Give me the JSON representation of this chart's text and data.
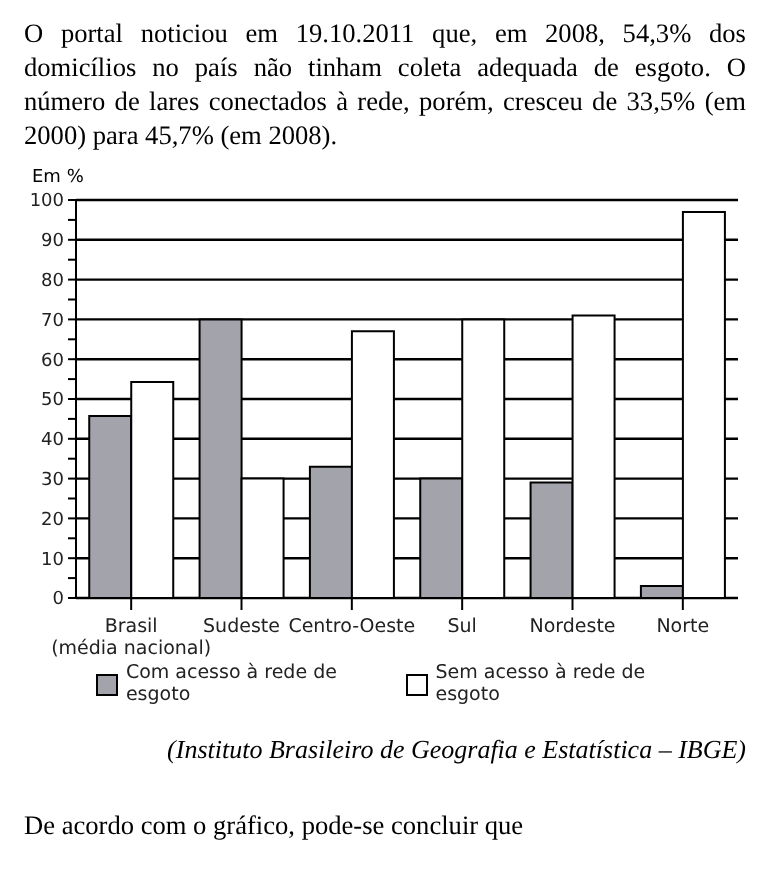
{
  "chart_data": {
    "type": "bar",
    "title": "O portal noticiou em 19.10.2011 que, em 2008, 54,3% dos domicílios no país não tinham coleta adequada de esgoto. O número de lares conectados à rede, porém, cresceu de 33,5% (em 2000) para 45,7% (em 2008).",
    "ylabel": "Em %",
    "categories": [
      "Brasil (média nacional)",
      "Sudeste",
      "Centro-Oeste",
      "Sul",
      "Nordeste",
      "Norte"
    ],
    "series": [
      {
        "name": "Com acesso à rede de esgoto",
        "color": "#a3a3ab",
        "values": [
          45.7,
          70,
          33,
          30,
          29,
          3
        ]
      },
      {
        "name": "Sem acesso à rede de esgoto",
        "color": "#ffffff",
        "values": [
          54.3,
          30,
          67,
          70,
          71,
          97
        ]
      }
    ],
    "ylim": [
      0,
      100
    ],
    "yticks": [
      0,
      {
        "value": 5,
        "label": null
      },
      10,
      {
        "value": 15,
        "label": null
      },
      20,
      {
        "value": 25,
        "label": null
      },
      30,
      {
        "value": 35,
        "label": null
      },
      40,
      {
        "value": 45,
        "label": null
      },
      50,
      {
        "value": 55,
        "label": null
      },
      60,
      {
        "value": 65,
        "label": null
      },
      70,
      {
        "value": 75,
        "label": null
      },
      80,
      {
        "value": 85,
        "label": null
      },
      90,
      {
        "value": 95,
        "label": null
      },
      100
    ],
    "grid": "y",
    "legend": "bottom",
    "annotations": [
      "(Instituto Brasileiro de Geografia e Estatística – IBGE)",
      "De acordo com o gráfico, pode-se concluir que"
    ]
  }
}
